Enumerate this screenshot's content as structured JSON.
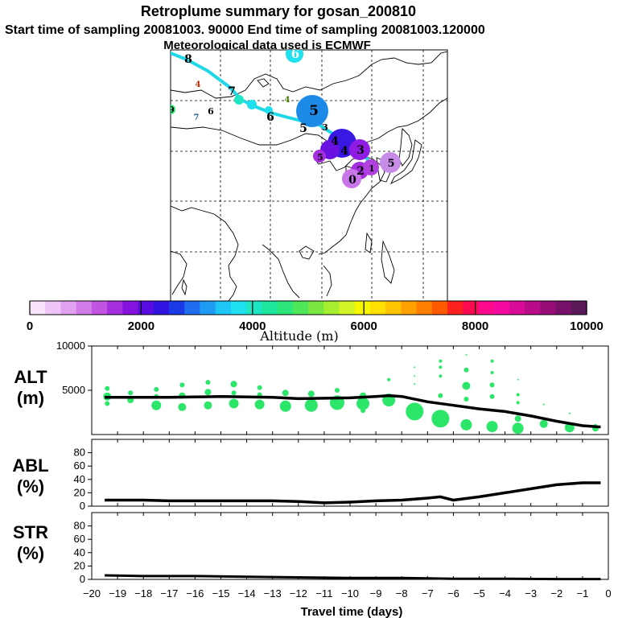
{
  "header": {
    "line1": "Retroplume summary for gosan_200810",
    "line2": "Start time of sampling 20081003. 90000     End time of sampling 20081003.120000",
    "line3": "Meteorological data used is ECMWF"
  },
  "colorbar": {
    "title": "Altitude (m)",
    "tick_labels": [
      "0",
      "2000",
      "4000",
      "6000",
      "8000",
      "10000"
    ],
    "colors": [
      "#f7e3fb",
      "#efc4f6",
      "#e2a1f0",
      "#d27ce9",
      "#c155e2",
      "#a52fde",
      "#8413de",
      "#5a0de0",
      "#2f14e2",
      "#1a3ae6",
      "#1e6eef",
      "#1e9cf5",
      "#1ec6f8",
      "#1ee0ee",
      "#1ee6c4",
      "#1ee69c",
      "#2ce67a",
      "#4ee65a",
      "#7ae640",
      "#a6ee30",
      "#d2f428",
      "#f7f700",
      "#ffe000",
      "#ffc400",
      "#ffa200",
      "#ff8000",
      "#ff5a00",
      "#ff2020",
      "#ff0a50",
      "#ff0a8c",
      "#f40aa0",
      "#d80a98",
      "#b80c88",
      "#980e78",
      "#761068",
      "#5a1a5a"
    ]
  },
  "map": {
    "trajectory_labels": [
      "0",
      "1",
      "2",
      "3",
      "4",
      "5",
      "6",
      "7",
      "8",
      "9",
      "4",
      "4",
      "6",
      "7"
    ]
  },
  "chart_data": [
    {
      "type": "scatter",
      "name": "ALT",
      "panel_label": [
        "ALT",
        "(m)"
      ],
      "xlabel": "Travel time (days)",
      "ylabel": "Altitude (m)",
      "xlim": [
        -20,
        0
      ],
      "ylim": [
        0,
        10000
      ],
      "yticks": [
        5000,
        10000
      ],
      "ytick_labels": [
        "5000",
        "10000"
      ],
      "line": {
        "x": [
          -19.5,
          -19,
          -18,
          -17,
          -16,
          -15,
          -14,
          -13,
          -12,
          -11,
          -10,
          -9,
          -8.5,
          -8,
          -7,
          -6,
          -5,
          -4,
          -3,
          -2,
          -1,
          -0.3
        ],
        "y": [
          4200,
          4200,
          4200,
          4200,
          4250,
          4300,
          4250,
          4200,
          4050,
          4100,
          4150,
          4300,
          4400,
          4300,
          3700,
          3300,
          2900,
          2600,
          2100,
          1500,
          1000,
          850
        ]
      },
      "points": [
        {
          "x": -19.4,
          "y": 5200,
          "s": 3
        },
        {
          "x": -19.4,
          "y": 4300,
          "s": 5
        },
        {
          "x": -19.4,
          "y": 3500,
          "s": 3
        },
        {
          "x": -18.5,
          "y": 4700,
          "s": 3
        },
        {
          "x": -18.5,
          "y": 3900,
          "s": 4
        },
        {
          "x": -17.5,
          "y": 5100,
          "s": 3
        },
        {
          "x": -17.5,
          "y": 4300,
          "s": 3
        },
        {
          "x": -17.5,
          "y": 3300,
          "s": 6
        },
        {
          "x": -16.5,
          "y": 5600,
          "s": 3
        },
        {
          "x": -16.5,
          "y": 4400,
          "s": 4
        },
        {
          "x": -16.5,
          "y": 3100,
          "s": 5
        },
        {
          "x": -15.5,
          "y": 5900,
          "s": 3
        },
        {
          "x": -15.5,
          "y": 4800,
          "s": 4
        },
        {
          "x": -15.5,
          "y": 3300,
          "s": 5
        },
        {
          "x": -14.5,
          "y": 5700,
          "s": 4
        },
        {
          "x": -14.5,
          "y": 4700,
          "s": 3
        },
        {
          "x": -14.5,
          "y": 3500,
          "s": 6
        },
        {
          "x": -13.5,
          "y": 5300,
          "s": 3
        },
        {
          "x": -13.5,
          "y": 4500,
          "s": 3
        },
        {
          "x": -13.5,
          "y": 3400,
          "s": 6
        },
        {
          "x": -12.5,
          "y": 4700,
          "s": 4
        },
        {
          "x": -12.5,
          "y": 3200,
          "s": 7
        },
        {
          "x": -11.5,
          "y": 4600,
          "s": 4
        },
        {
          "x": -11.5,
          "y": 3300,
          "s": 8
        },
        {
          "x": -10.5,
          "y": 5000,
          "s": 3
        },
        {
          "x": -10.5,
          "y": 3600,
          "s": 9
        },
        {
          "x": -9.5,
          "y": 4400,
          "s": 4
        },
        {
          "x": -9.5,
          "y": 3500,
          "s": 8
        },
        {
          "x": -9.5,
          "y": 2700,
          "s": 3
        },
        {
          "x": -8.5,
          "y": 6200,
          "s": 2
        },
        {
          "x": -8.5,
          "y": 3900,
          "s": 8
        },
        {
          "x": -7.5,
          "y": 7600,
          "s": 1
        },
        {
          "x": -7.5,
          "y": 6600,
          "s": 1
        },
        {
          "x": -7.5,
          "y": 5700,
          "s": 1
        },
        {
          "x": -7.5,
          "y": 2600,
          "s": 11
        },
        {
          "x": -6.5,
          "y": 8300,
          "s": 2
        },
        {
          "x": -6.5,
          "y": 7600,
          "s": 2
        },
        {
          "x": -6.5,
          "y": 6600,
          "s": 2
        },
        {
          "x": -6.5,
          "y": 4400,
          "s": 3
        },
        {
          "x": -6.5,
          "y": 1800,
          "s": 11
        },
        {
          "x": -5.5,
          "y": 9000,
          "s": 1
        },
        {
          "x": -5.5,
          "y": 7300,
          "s": 3
        },
        {
          "x": -5.5,
          "y": 5500,
          "s": 5
        },
        {
          "x": -5.5,
          "y": 4000,
          "s": 3
        },
        {
          "x": -5.5,
          "y": 1100,
          "s": 7
        },
        {
          "x": -4.5,
          "y": 8300,
          "s": 2
        },
        {
          "x": -4.5,
          "y": 7000,
          "s": 2
        },
        {
          "x": -4.5,
          "y": 5600,
          "s": 3
        },
        {
          "x": -4.5,
          "y": 4300,
          "s": 3
        },
        {
          "x": -4.5,
          "y": 900,
          "s": 7
        },
        {
          "x": -3.5,
          "y": 6200,
          "s": 1
        },
        {
          "x": -3.5,
          "y": 4500,
          "s": 2
        },
        {
          "x": -3.5,
          "y": 3600,
          "s": 2
        },
        {
          "x": -3.5,
          "y": 1800,
          "s": 4
        },
        {
          "x": -3.5,
          "y": 700,
          "s": 7
        },
        {
          "x": -2.5,
          "y": 3400,
          "s": 1
        },
        {
          "x": -2.5,
          "y": 1200,
          "s": 5
        },
        {
          "x": -1.5,
          "y": 2400,
          "s": 1
        },
        {
          "x": -1.5,
          "y": 800,
          "s": 6
        },
        {
          "x": -0.5,
          "y": 1000,
          "s": 2
        },
        {
          "x": -0.5,
          "y": 700,
          "s": 4
        }
      ]
    },
    {
      "type": "line",
      "name": "ABL",
      "panel_label": [
        "ABL",
        "(%)"
      ],
      "xlim": [
        -20,
        0
      ],
      "ylim": [
        0,
        100
      ],
      "yticks": [
        0,
        20,
        40,
        60,
        80
      ],
      "ytick_labels": [
        "0",
        "20",
        "40",
        "60",
        "80"
      ],
      "x": [
        -19.5,
        -18,
        -17,
        -16,
        -15,
        -14,
        -13,
        -12,
        -11,
        -10,
        -9,
        -8,
        -7,
        -6.5,
        -6,
        -5,
        -4,
        -3,
        -2,
        -1,
        -0.3
      ],
      "y": [
        9,
        9,
        8,
        8,
        8,
        8,
        8,
        7,
        5,
        6,
        8,
        9,
        12,
        14,
        9,
        14,
        20,
        26,
        32,
        35,
        35
      ]
    },
    {
      "type": "line",
      "name": "STR",
      "panel_label": [
        "STR",
        "(%)"
      ],
      "xlim": [
        -20,
        0
      ],
      "ylim": [
        0,
        100
      ],
      "yticks": [
        0,
        20,
        40,
        60,
        80
      ],
      "ytick_labels": [
        "0",
        "20",
        "40",
        "60",
        "80"
      ],
      "xticks": [
        -20,
        -19,
        -18,
        -17,
        -16,
        -15,
        -14,
        -13,
        -12,
        -11,
        -10,
        -9,
        -8,
        -7,
        -6,
        -5,
        -4,
        -3,
        -2,
        -1,
        0
      ],
      "xtick_labels": [
        "−20",
        "−19",
        "−18",
        "−17",
        "−16",
        "−15",
        "−14",
        "−13",
        "−12",
        "−11",
        "−10",
        "−9",
        "−8",
        "−7",
        "−6",
        "−5",
        "−4",
        "−3",
        "−2",
        "−1",
        "0"
      ],
      "x": [
        -19.5,
        -18,
        -16,
        -14,
        -12,
        -10,
        -8,
        -6,
        -4,
        -2,
        -0.3
      ],
      "y": [
        6,
        5,
        5,
        4,
        3,
        2,
        2,
        1,
        1,
        0.5,
        0.5
      ]
    }
  ]
}
